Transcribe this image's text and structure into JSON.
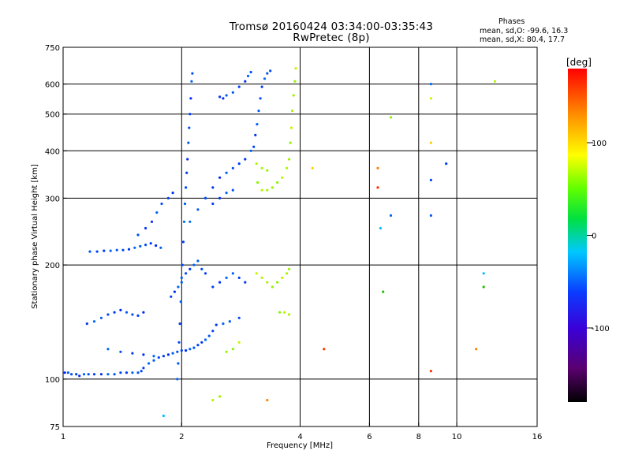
{
  "title": {
    "line1": "Tromsø 20160424 03:34:00-03:35:43",
    "line2": "RwPretec (8p)"
  },
  "stats": {
    "heading": "Phases",
    "o_line": "mean, sd,O: -99.6, 16.3",
    "x_line": "mean, sd,X: 80.4, 17.7"
  },
  "chart_data": {
    "type": "scatter",
    "xlabel": "Frequency [MHz]",
    "ylabel": "Stationary phase Virtual Height [km]",
    "x_scale": "log",
    "y_scale": "log",
    "xlim": [
      1,
      16
    ],
    "ylim": [
      75,
      750
    ],
    "x_ticks": [
      1,
      2,
      4,
      6,
      8,
      10,
      16
    ],
    "y_ticks": [
      75,
      100,
      200,
      300,
      400,
      500,
      600,
      750
    ],
    "x_gridlines": [
      2,
      4,
      6,
      8,
      10
    ],
    "y_gridlines": [
      100,
      200,
      300,
      400,
      500,
      600
    ],
    "grid": true,
    "colorbar": {
      "label": "[deg]",
      "range": [
        -180,
        180
      ],
      "ticks": [
        100,
        0,
        -100
      ],
      "colormap": "rainbow (black-purple-blue-cyan-green-yellow-orange-red)"
    },
    "trace_phases_deg": {
      "o_mode": -100,
      "x_mode": 80
    },
    "series": [
      {
        "mode": "O",
        "phase_deg": -100,
        "points": [
          [
            1.01,
            104
          ],
          [
            1.03,
            104
          ],
          [
            1.05,
            103
          ],
          [
            1.08,
            103
          ],
          [
            1.1,
            102
          ],
          [
            1.13,
            103
          ],
          [
            1.16,
            103
          ],
          [
            1.2,
            103
          ],
          [
            1.25,
            103
          ],
          [
            1.3,
            103
          ],
          [
            1.35,
            103
          ],
          [
            1.4,
            104
          ],
          [
            1.45,
            104
          ],
          [
            1.5,
            104
          ],
          [
            1.55,
            104
          ],
          [
            1.58,
            105
          ],
          [
            1.6,
            107
          ],
          [
            1.65,
            110
          ],
          [
            1.7,
            112
          ],
          [
            1.75,
            114
          ],
          [
            1.8,
            115
          ],
          [
            1.85,
            116
          ],
          [
            1.9,
            117
          ],
          [
            1.95,
            118
          ],
          [
            2.0,
            119
          ],
          [
            2.05,
            119
          ],
          [
            2.1,
            120
          ],
          [
            2.15,
            121
          ],
          [
            2.2,
            123
          ],
          [
            2.25,
            125
          ],
          [
            2.3,
            127
          ],
          [
            2.35,
            130
          ],
          [
            2.4,
            134
          ],
          [
            2.45,
            139
          ],
          [
            2.55,
            140
          ],
          [
            2.65,
            142
          ],
          [
            2.8,
            145
          ],
          [
            1.15,
            140
          ],
          [
            1.2,
            142
          ],
          [
            1.25,
            145
          ],
          [
            1.3,
            148
          ],
          [
            1.35,
            150
          ],
          [
            1.4,
            152
          ],
          [
            1.45,
            150
          ],
          [
            1.5,
            148
          ],
          [
            1.55,
            147
          ],
          [
            1.6,
            150
          ],
          [
            1.3,
            120
          ],
          [
            1.4,
            118
          ],
          [
            1.5,
            117
          ],
          [
            1.6,
            116
          ],
          [
            1.7,
            115
          ],
          [
            1.17,
            217
          ],
          [
            1.22,
            217
          ],
          [
            1.27,
            218
          ],
          [
            1.32,
            218
          ],
          [
            1.37,
            219
          ],
          [
            1.42,
            219
          ],
          [
            1.47,
            220
          ],
          [
            1.52,
            222
          ],
          [
            1.57,
            224
          ],
          [
            1.62,
            226
          ],
          [
            1.67,
            228
          ],
          [
            1.72,
            225
          ],
          [
            1.77,
            222
          ],
          [
            1.55,
            240
          ],
          [
            1.62,
            250
          ],
          [
            1.68,
            260
          ],
          [
            1.73,
            275
          ],
          [
            1.78,
            290
          ],
          [
            1.85,
            300
          ],
          [
            1.9,
            310
          ],
          [
            1.95,
            100
          ],
          [
            1.96,
            110
          ],
          [
            1.97,
            125
          ],
          [
            1.98,
            140
          ],
          [
            1.99,
            160
          ],
          [
            2.0,
            180
          ],
          [
            2.01,
            200
          ],
          [
            2.02,
            230
          ],
          [
            2.03,
            260
          ],
          [
            2.04,
            290
          ],
          [
            2.05,
            320
          ],
          [
            2.06,
            350
          ],
          [
            2.07,
            380
          ],
          [
            2.08,
            420
          ],
          [
            2.09,
            460
          ],
          [
            2.1,
            500
          ],
          [
            2.11,
            550
          ],
          [
            2.12,
            610
          ],
          [
            2.13,
            640
          ],
          [
            1.88,
            165
          ],
          [
            1.92,
            170
          ],
          [
            1.96,
            175
          ],
          [
            2.0,
            185
          ],
          [
            2.05,
            190
          ],
          [
            2.1,
            195
          ],
          [
            2.15,
            200
          ],
          [
            2.2,
            205
          ],
          [
            2.25,
            195
          ],
          [
            2.3,
            190
          ],
          [
            2.1,
            260
          ],
          [
            2.2,
            280
          ],
          [
            2.3,
            300
          ],
          [
            2.4,
            320
          ],
          [
            2.5,
            340
          ],
          [
            2.6,
            350
          ],
          [
            2.7,
            360
          ],
          [
            2.8,
            370
          ],
          [
            2.9,
            380
          ],
          [
            3.0,
            400
          ],
          [
            2.3,
            300
          ],
          [
            2.4,
            290
          ],
          [
            2.5,
            300
          ],
          [
            2.6,
            310
          ],
          [
            2.7,
            315
          ],
          [
            3.05,
            410
          ],
          [
            3.08,
            440
          ],
          [
            3.11,
            470
          ],
          [
            3.14,
            510
          ],
          [
            3.17,
            550
          ],
          [
            3.2,
            590
          ],
          [
            3.25,
            620
          ],
          [
            3.3,
            640
          ],
          [
            3.36,
            650
          ],
          [
            2.5,
            555
          ],
          [
            2.55,
            550
          ],
          [
            2.6,
            560
          ],
          [
            2.7,
            570
          ],
          [
            2.8,
            590
          ],
          [
            2.9,
            610
          ],
          [
            2.95,
            630
          ],
          [
            3.0,
            645
          ],
          [
            2.4,
            175
          ],
          [
            2.5,
            180
          ],
          [
            2.6,
            185
          ],
          [
            2.7,
            190
          ],
          [
            2.8,
            185
          ],
          [
            2.9,
            180
          ],
          [
            6.8,
            270
          ],
          [
            8.6,
            270
          ],
          [
            8.6,
            335
          ],
          [
            9.4,
            370
          ],
          [
            8.6,
            600
          ]
        ]
      },
      {
        "mode": "X",
        "phase_deg": 80,
        "points": [
          [
            3.12,
            330
          ],
          [
            3.2,
            315
          ],
          [
            3.3,
            315
          ],
          [
            3.4,
            320
          ],
          [
            3.5,
            330
          ],
          [
            3.6,
            340
          ],
          [
            3.7,
            360
          ],
          [
            3.75,
            380
          ],
          [
            3.78,
            420
          ],
          [
            3.8,
            460
          ],
          [
            3.82,
            510
          ],
          [
            3.85,
            560
          ],
          [
            3.88,
            610
          ],
          [
            3.9,
            660
          ],
          [
            3.1,
            370
          ],
          [
            3.2,
            360
          ],
          [
            3.3,
            355
          ],
          [
            3.1,
            190
          ],
          [
            3.2,
            185
          ],
          [
            3.3,
            180
          ],
          [
            3.4,
            175
          ],
          [
            3.5,
            180
          ],
          [
            3.6,
            185
          ],
          [
            3.7,
            190
          ],
          [
            3.75,
            195
          ],
          [
            3.55,
            150
          ],
          [
            3.65,
            150
          ],
          [
            3.75,
            148
          ],
          [
            2.6,
            118
          ],
          [
            2.7,
            120
          ],
          [
            2.8,
            125
          ],
          [
            2.4,
            88
          ],
          [
            2.5,
            90
          ],
          [
            6.8,
            490
          ],
          [
            8.6,
            550
          ],
          [
            12.5,
            610
          ]
        ]
      },
      {
        "mode": "scattered",
        "points": [
          [
            6.3,
            320
          ],
          [
            6.3,
            360
          ],
          [
            6.4,
            250
          ],
          [
            6.5,
            170
          ],
          [
            8.6,
            420
          ],
          [
            8.6,
            105
          ],
          [
            11.2,
            120
          ],
          [
            11.7,
            190
          ],
          [
            11.7,
            175
          ],
          [
            4.3,
            360
          ],
          [
            4.6,
            120
          ],
          [
            3.3,
            88
          ],
          [
            1.8,
            80
          ]
        ]
      }
    ]
  }
}
